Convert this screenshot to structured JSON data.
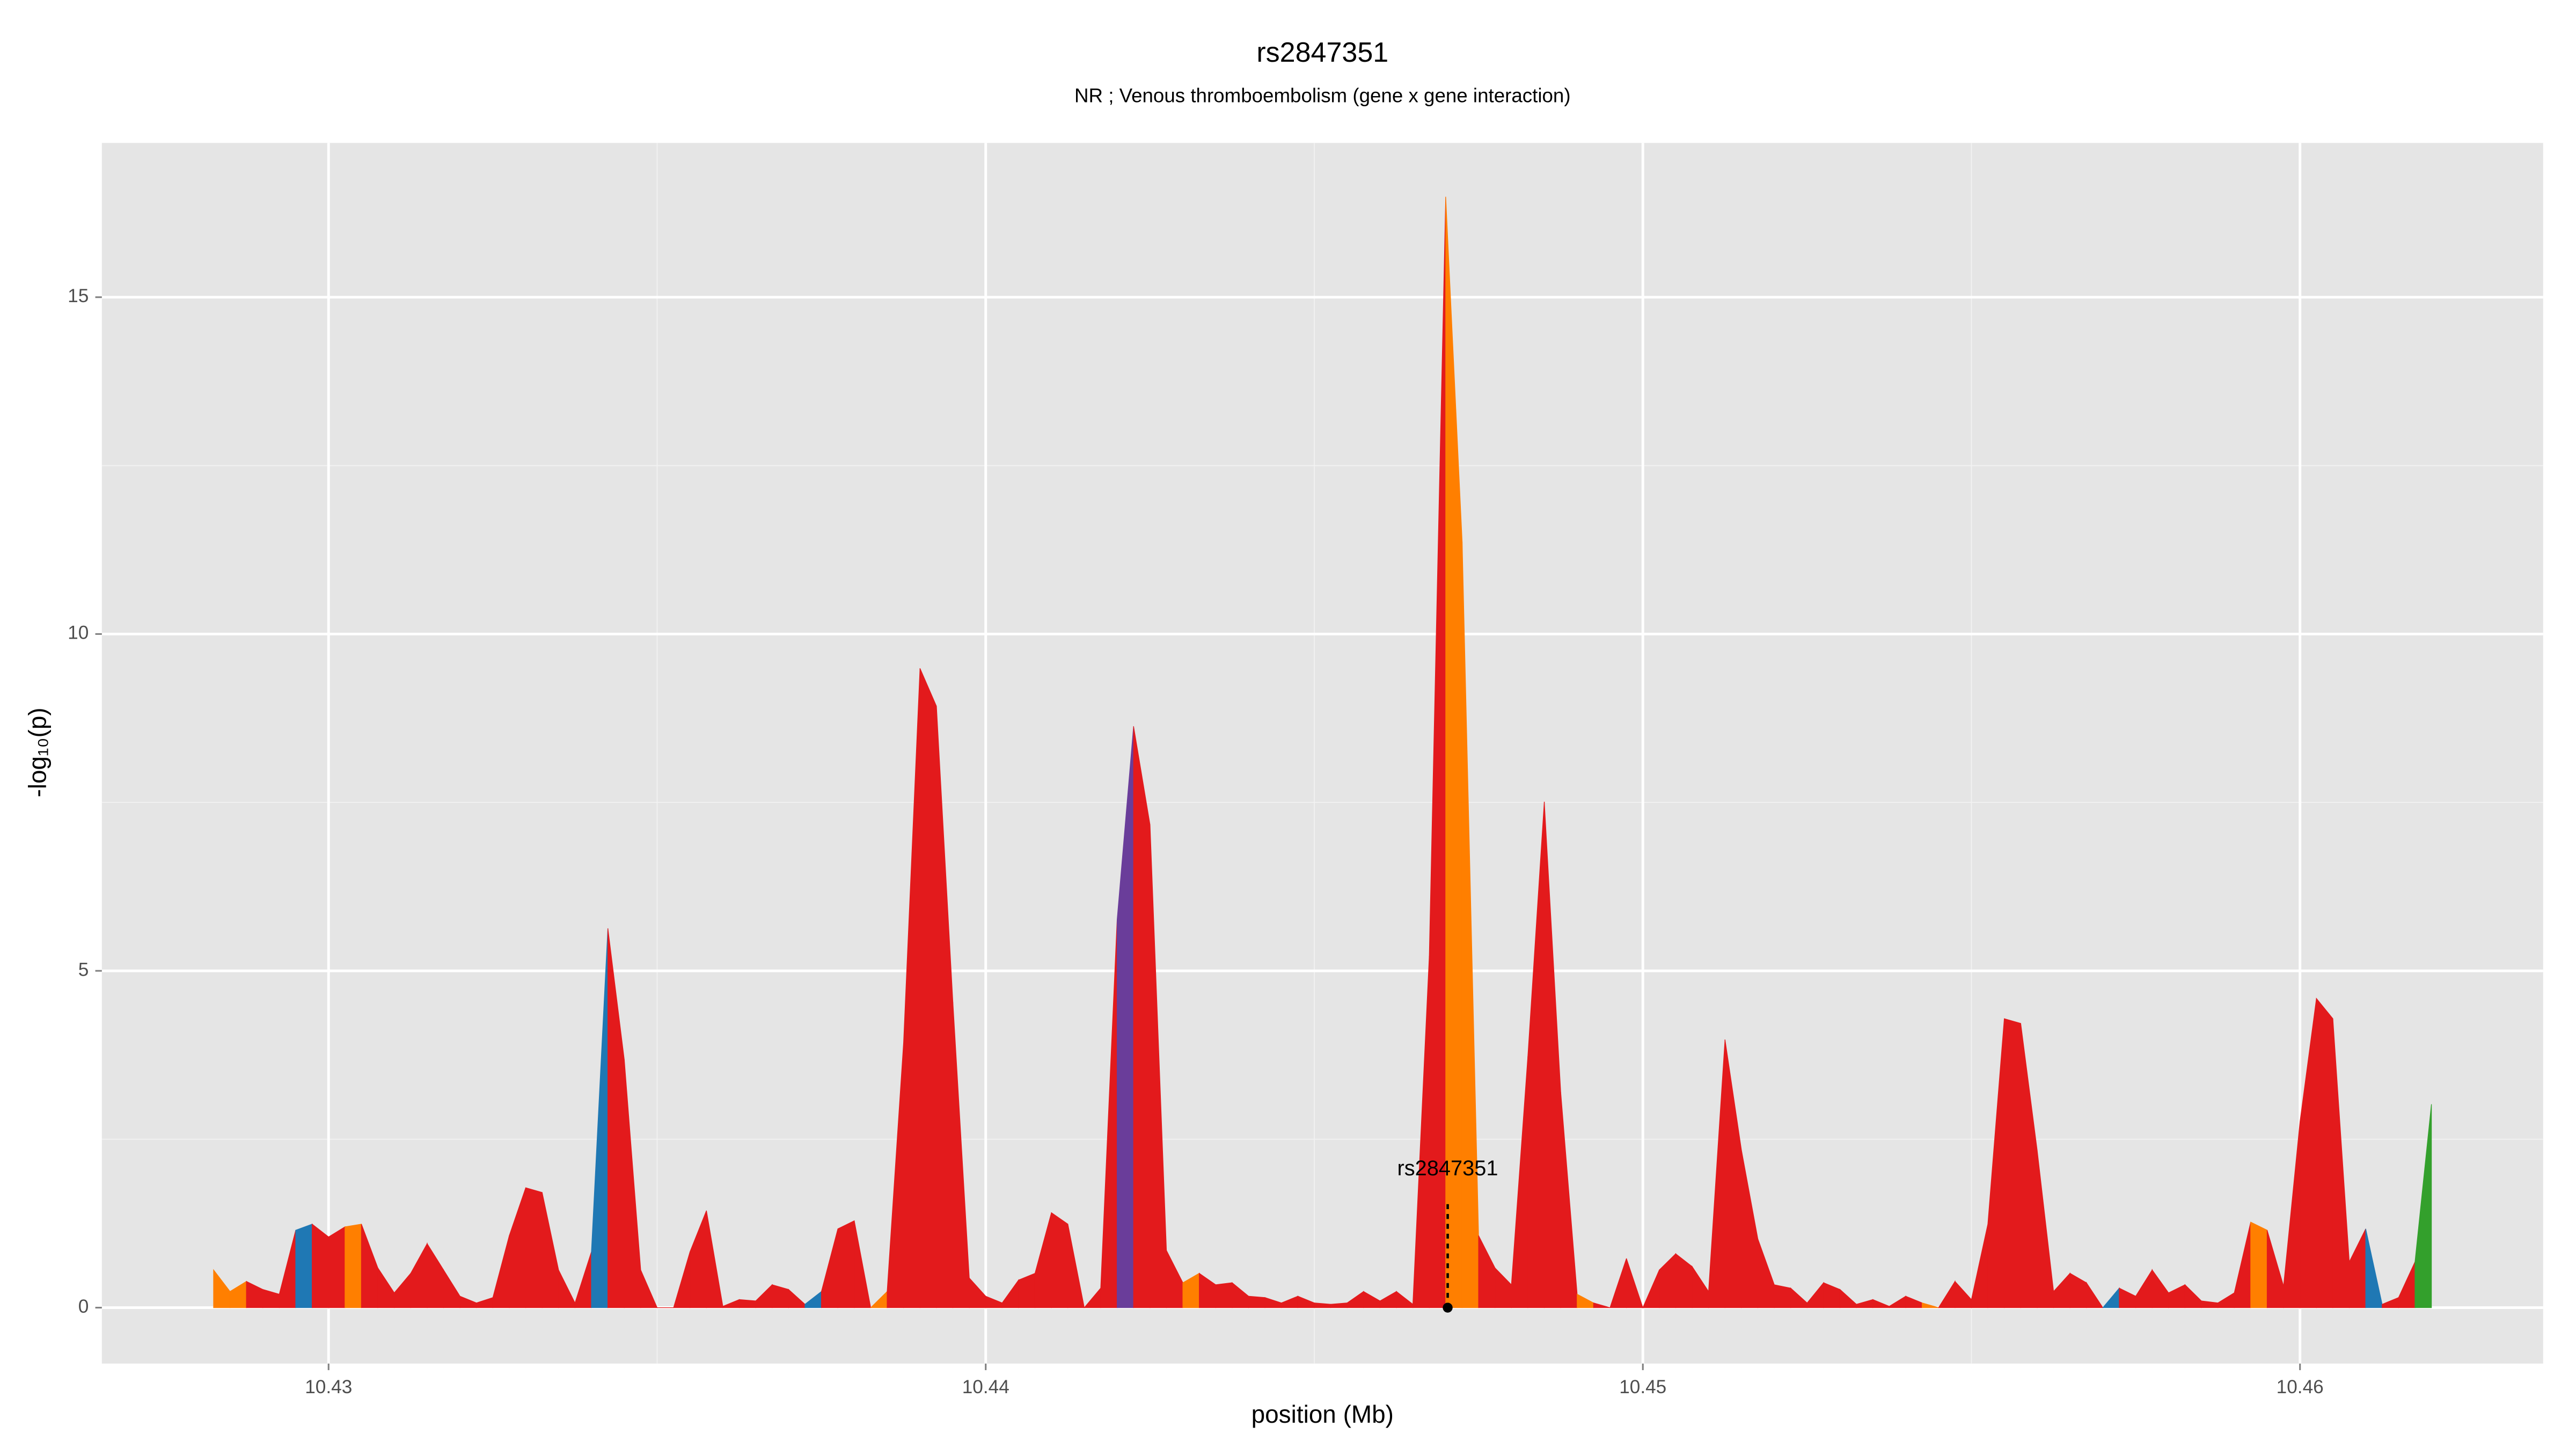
{
  "chart_data": {
    "type": "area",
    "title": "rs2847351",
    "subtitle": "NR ; Venous thromboembolism (gene x gene interaction)",
    "x_label": "position (Mb)",
    "y_label": "-log₁₀(p)",
    "xlim": [
      10.42655,
      10.4637
    ],
    "ylim": [
      -0.83,
      17.29
    ],
    "xticks": [
      10.43,
      10.44,
      10.45,
      10.46
    ],
    "yticks": [
      0,
      5,
      10,
      15
    ],
    "grid": true,
    "x": [
      10.42825,
      10.4285,
      10.42875,
      10.429,
      10.42925,
      10.4295,
      10.42975,
      10.43,
      10.43025,
      10.4305,
      10.43075,
      10.431,
      10.43125,
      10.4315,
      10.43175,
      10.432,
      10.43225,
      10.4325,
      10.43275,
      10.433,
      10.43325,
      10.4335,
      10.43375,
      10.434,
      10.43425,
      10.4345,
      10.43475,
      10.435,
      10.43525,
      10.4355,
      10.43575,
      10.436,
      10.43625,
      10.4365,
      10.43675,
      10.437,
      10.43725,
      10.4375,
      10.43775,
      10.438,
      10.43825,
      10.4385,
      10.43875,
      10.439,
      10.43925,
      10.4395,
      10.43975,
      10.44,
      10.44025,
      10.4405,
      10.44075,
      10.441,
      10.44125,
      10.4415,
      10.44175,
      10.442,
      10.44225,
      10.4425,
      10.44275,
      10.443,
      10.44325,
      10.4435,
      10.44375,
      10.444,
      10.44425,
      10.4445,
      10.44475,
      10.445,
      10.44525,
      10.4455,
      10.44575,
      10.446,
      10.44625,
      10.4465,
      10.44675,
      10.447,
      10.44725,
      10.4475,
      10.44775,
      10.448,
      10.44825,
      10.4485,
      10.44875,
      10.449,
      10.44925,
      10.4495,
      10.44975,
      10.45,
      10.45025,
      10.4505,
      10.45075,
      10.451,
      10.45125,
      10.4515,
      10.45175,
      10.452,
      10.45225,
      10.4525,
      10.45275,
      10.453,
      10.45325,
      10.4535,
      10.45375,
      10.454,
      10.45425,
      10.4545,
      10.45475,
      10.455,
      10.45525,
      10.4555,
      10.45575,
      10.456,
      10.45625,
      10.4565,
      10.45675,
      10.457,
      10.45725,
      10.4575,
      10.45775,
      10.458,
      10.45825,
      10.4585,
      10.45875,
      10.459,
      10.45925,
      10.4595,
      10.45975,
      10.46,
      10.46025,
      10.4605,
      10.46075,
      10.461,
      10.46125,
      10.4615,
      10.46175,
      10.462
    ],
    "values": [
      0.56,
      0.24,
      0.39,
      0.27,
      0.2,
      1.15,
      1.24,
      1.05,
      1.2,
      1.24,
      0.59,
      0.22,
      0.51,
      0.95,
      0.56,
      0.17,
      0.07,
      0.15,
      1.07,
      1.78,
      1.71,
      0.56,
      0.07,
      0.83,
      5.63,
      3.68,
      0.56,
      0,
      0,
      0.83,
      1.44,
      0.02,
      0.12,
      0.1,
      0.34,
      0.27,
      0.05,
      0.24,
      1.17,
      1.29,
      0,
      0.24,
      3.93,
      9.49,
      8.93,
      4.54,
      0.44,
      0.17,
      0.07,
      0.41,
      0.51,
      1.41,
      1.24,
      0,
      0.29,
      5.76,
      8.63,
      7.17,
      0.85,
      0.37,
      0.51,
      0.34,
      0.37,
      0.17,
      0.15,
      0.07,
      0.17,
      0.07,
      0.05,
      0.07,
      0.24,
      0.1,
      0.24,
      0.05,
      5.22,
      16.49,
      11.37,
      1.07,
      0.59,
      0.34,
      3.73,
      7.51,
      3.2,
      0.2,
      0.07,
      0,
      0.73,
      0,
      0.56,
      0.8,
      0.61,
      0.24,
      3.98,
      2.34,
      1.02,
      0.34,
      0.29,
      0.07,
      0.37,
      0.27,
      0.05,
      0.12,
      0.02,
      0.17,
      0.07,
      0,
      0.39,
      0.12,
      1.24,
      4.29,
      4.22,
      2.34,
      0.24,
      0.51,
      0.37,
      0,
      0.29,
      0.17,
      0.56,
      0.22,
      0.34,
      0.1,
      0.07,
      0.22,
      1.27,
      1.15,
      0.32,
      2.76,
      4.59,
      4.29,
      0.68,
      1.17,
      0.05,
      0.15,
      0.68,
      3.02
    ],
    "colors": [
      "#ff7f00",
      "#ff7f00",
      "#e31a1c",
      "#e31a1c",
      "#e31a1c",
      "#1f78b4",
      "#e31a1c",
      "#e31a1c",
      "#ff7f00",
      "#e31a1c",
      "#e31a1c",
      "#e31a1c",
      "#e31a1c",
      "#e31a1c",
      "#e31a1c",
      "#e31a1c",
      "#e31a1c",
      "#e31a1c",
      "#e31a1c",
      "#e31a1c",
      "#e31a1c",
      "#e31a1c",
      "#e31a1c",
      "#1f78b4",
      "#e31a1c",
      "#e31a1c",
      "#e31a1c",
      "#e31a1c",
      "#e31a1c",
      "#e31a1c",
      "#e31a1c",
      "#e31a1c",
      "#e31a1c",
      "#e31a1c",
      "#e31a1c",
      "#e31a1c",
      "#1f78b4",
      "#e31a1c",
      "#e31a1c",
      "#e31a1c",
      "#ff7f00",
      "#e31a1c",
      "#e31a1c",
      "#e31a1c",
      "#e31a1c",
      "#e31a1c",
      "#e31a1c",
      "#e31a1c",
      "#e31a1c",
      "#e31a1c",
      "#e31a1c",
      "#e31a1c",
      "#e31a1c",
      "#e31a1c",
      "#e31a1c",
      "#6a3d9a",
      "#e31a1c",
      "#e31a1c",
      "#e31a1c",
      "#ff7f00",
      "#e31a1c",
      "#e31a1c",
      "#e31a1c",
      "#e31a1c",
      "#e31a1c",
      "#e31a1c",
      "#e31a1c",
      "#e31a1c",
      "#e31a1c",
      "#e31a1c",
      "#e31a1c",
      "#e31a1c",
      "#e31a1c",
      "#e31a1c",
      "#e31a1c",
      "#ff7f00",
      "#ff7f00",
      "#e31a1c",
      "#e31a1c",
      "#e31a1c",
      "#e31a1c",
      "#e31a1c",
      "#e31a1c",
      "#ff7f00",
      "#e31a1c",
      "#e31a1c",
      "#e31a1c",
      "#e31a1c",
      "#e31a1c",
      "#e31a1c",
      "#e31a1c",
      "#e31a1c",
      "#e31a1c",
      "#e31a1c",
      "#e31a1c",
      "#e31a1c",
      "#e31a1c",
      "#e31a1c",
      "#e31a1c",
      "#e31a1c",
      "#e31a1c",
      "#e31a1c",
      "#e31a1c",
      "#e31a1c",
      "#ff7f00",
      "#e31a1c",
      "#e31a1c",
      "#e31a1c",
      "#e31a1c",
      "#e31a1c",
      "#e31a1c",
      "#e31a1c",
      "#e31a1c",
      "#e31a1c",
      "#e31a1c",
      "#1f78b4",
      "#e31a1c",
      "#e31a1c",
      "#e31a1c",
      "#e31a1c",
      "#e31a1c",
      "#e31a1c",
      "#e31a1c",
      "#e31a1c",
      "#ff7f00",
      "#e31a1c",
      "#e31a1c",
      "#e31a1c",
      "#e31a1c",
      "#e31a1c",
      "#e31a1c",
      "#1f78b4",
      "#e31a1c",
      "#e31a1c",
      "#33a02c",
      "#33a02c"
    ],
    "annotation": {
      "label": "rs2847351",
      "x": 10.44703,
      "y": 0
    }
  }
}
